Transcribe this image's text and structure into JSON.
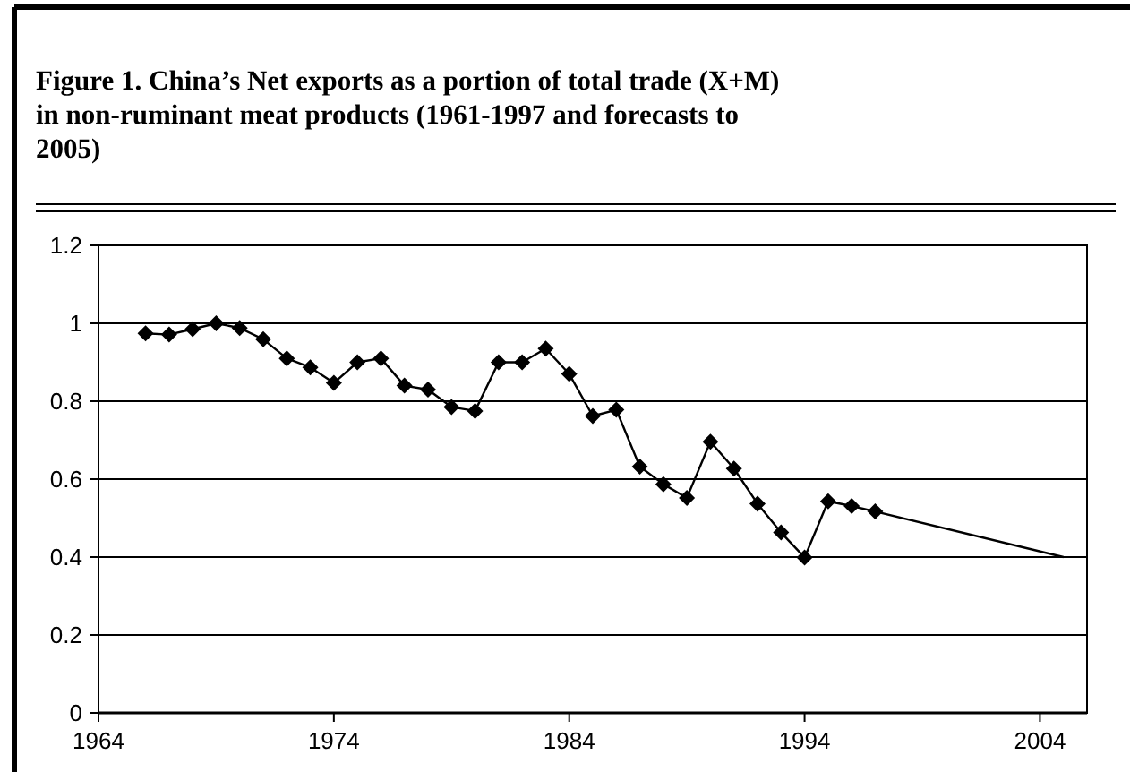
{
  "chart_data": {
    "type": "line",
    "title": "Figure 1. China’s Net exports as a portion of total trade (X+M)\nin non-ruminant meat products (1961-1997 and forecasts to\n2005)",
    "series": [
      {
        "color": "#000000",
        "marker": "diamond",
        "x": [
          1966,
          1967,
          1968,
          1969,
          1970,
          1971,
          1972,
          1973,
          1974,
          1975,
          1976,
          1977,
          1978,
          1979,
          1980,
          1981,
          1982,
          1983,
          1984,
          1985,
          1986,
          1987,
          1988,
          1989,
          1990,
          1991,
          1992,
          1993,
          1994,
          1995,
          1996,
          1997
        ],
        "values": [
          0.974,
          0.971,
          0.985,
          1.0,
          0.988,
          0.959,
          0.91,
          0.887,
          0.847,
          0.9,
          0.91,
          0.84,
          0.83,
          0.785,
          0.775,
          0.9,
          0.9,
          0.935,
          0.87,
          0.762,
          0.778,
          0.632,
          0.587,
          0.552,
          0.696,
          0.627,
          0.537,
          0.463,
          0.399,
          0.543,
          0.531,
          0.517
        ]
      },
      {
        "color": "#000000",
        "marker": "none",
        "x": [
          1997,
          2005
        ],
        "values": [
          0.517,
          0.4
        ]
      }
    ],
    "xlim": [
      1964,
      2006
    ],
    "xticks": [
      1964,
      1974,
      1984,
      1994,
      2004
    ],
    "ylim": [
      0,
      1.2
    ],
    "yticks": [
      {
        "value": 0,
        "label": "0"
      },
      {
        "value": 0.2,
        "label": "0.2"
      },
      {
        "value": 0.4,
        "label": "0.4"
      },
      {
        "value": 0.6,
        "label": "0.6"
      },
      {
        "value": 0.8,
        "label": "0.8"
      },
      {
        "value": 1,
        "label": "1"
      },
      {
        "value": 1.2,
        "label": "1.2"
      }
    ],
    "grid": "y",
    "line_style": "solid"
  }
}
